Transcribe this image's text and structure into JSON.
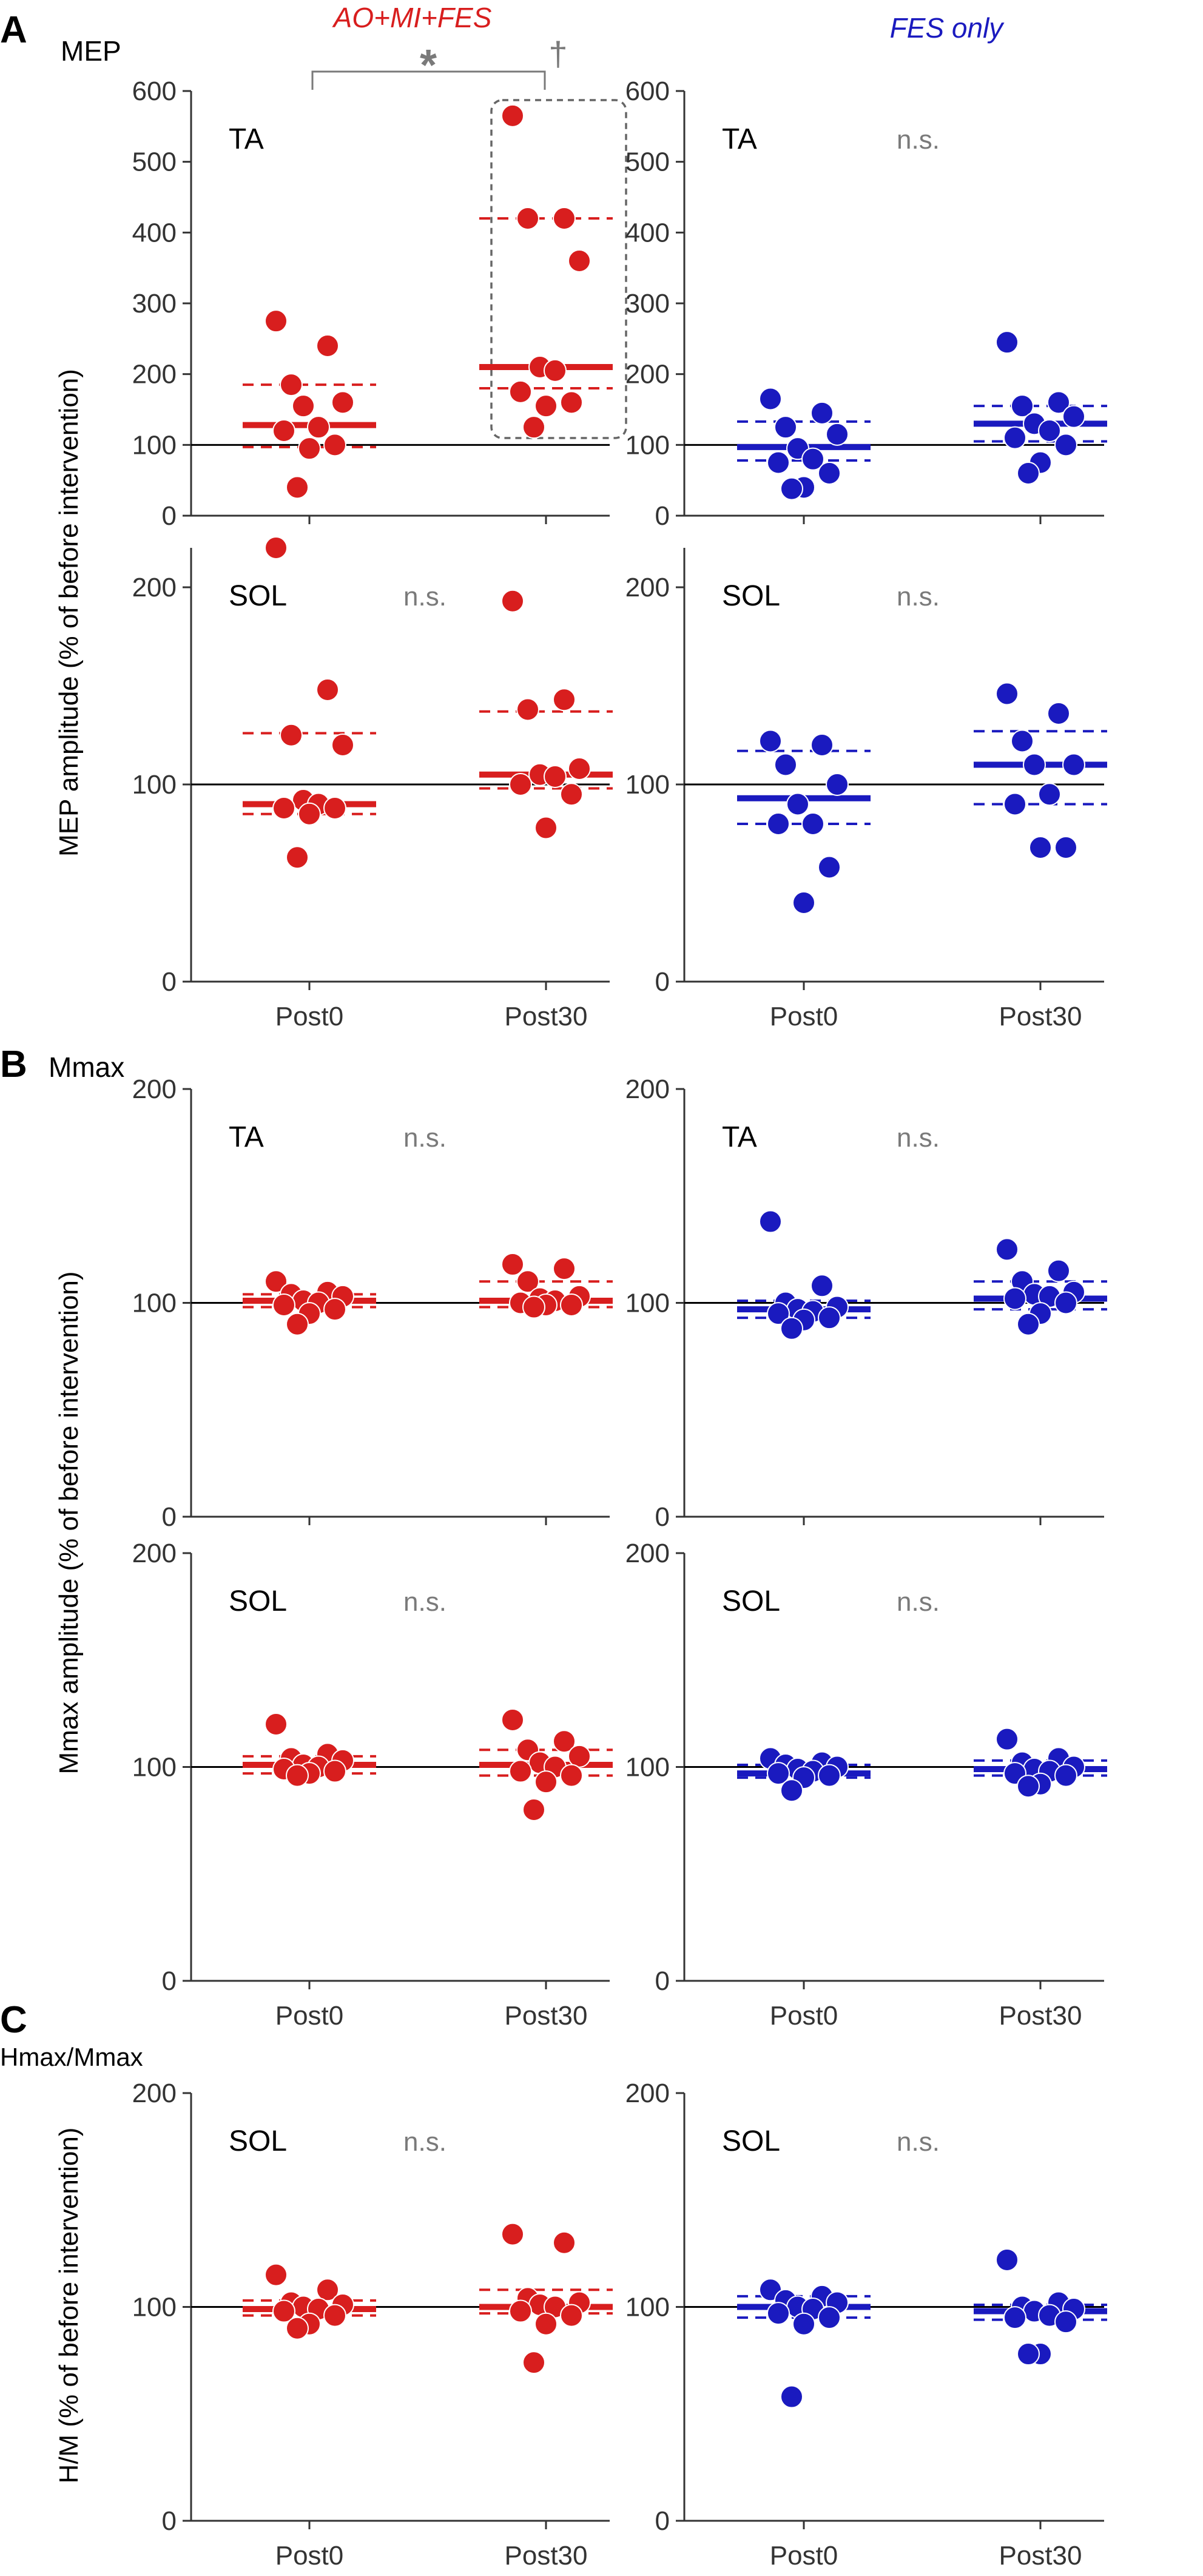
{
  "header": {
    "left_group": "AO+MI+FES",
    "right_group": "FES only"
  },
  "panels": [
    {
      "letter": "A",
      "measure": "MEP"
    },
    {
      "letter": "B",
      "measure": "Mmax"
    },
    {
      "letter": "C",
      "measure": "Hmax/Mmax"
    }
  ],
  "ylabels": {
    "mep": "MEP amplitude (% of before intervention)",
    "mmax": "Mmax amplitude (% of before intervention)",
    "hm": "H/M (% of before intervention)"
  },
  "annotations": {
    "sig_star": "*",
    "dagger": "†",
    "ns": "n.s."
  },
  "colors": {
    "ao": "#d81e1e",
    "fes": "#1a1abf",
    "axis": "#333333",
    "annot": "#7a7a7a"
  },
  "chart_data": [
    {
      "id": "mep-ta-ao",
      "type": "scatter",
      "title": "TA",
      "ylim": [
        0,
        600
      ],
      "yticks": [
        0,
        100,
        200,
        300,
        400,
        500,
        600
      ],
      "categories": [
        "Post0",
        "Post30"
      ],
      "show_xticklabels": false,
      "color_key": "ao",
      "note": "",
      "series": [
        {
          "name": "Post0",
          "values": [
            275,
            240,
            185,
            160,
            155,
            125,
            120,
            100,
            95,
            40
          ],
          "mean": 128,
          "sd_upper": 185,
          "sd_lower": 97
        },
        {
          "name": "Post30",
          "values": [
            565,
            420,
            420,
            360,
            210,
            205,
            175,
            160,
            155,
            125
          ],
          "mean": 210,
          "sd_upper": 420,
          "sd_lower": 180
        }
      ]
    },
    {
      "id": "mep-ta-fes",
      "type": "scatter",
      "title": "TA",
      "ylim": [
        0,
        600
      ],
      "yticks": [
        0,
        100,
        200,
        300,
        400,
        500,
        600
      ],
      "categories": [
        "Post0",
        "Post30"
      ],
      "show_xticklabels": false,
      "color_key": "fes",
      "note": "n.s.",
      "series": [
        {
          "name": "Post0",
          "values": [
            165,
            145,
            125,
            115,
            95,
            80,
            75,
            60,
            40,
            38
          ],
          "mean": 97,
          "sd_upper": 133,
          "sd_lower": 78
        },
        {
          "name": "Post30",
          "values": [
            245,
            160,
            155,
            140,
            130,
            120,
            110,
            100,
            75,
            60
          ],
          "mean": 130,
          "sd_upper": 155,
          "sd_lower": 105
        }
      ]
    },
    {
      "id": "mep-sol-ao",
      "type": "scatter",
      "title": "SOL",
      "ylim": [
        0,
        220
      ],
      "yticks": [
        0,
        100,
        200
      ],
      "categories": [
        "Post0",
        "Post30"
      ],
      "show_xticklabels": true,
      "color_key": "ao",
      "note": "n.s.",
      "series": [
        {
          "name": "Post0",
          "values": [
            220,
            148,
            125,
            120,
            92,
            90,
            88,
            88,
            85,
            63
          ],
          "mean": 90,
          "sd_upper": 126,
          "sd_lower": 85
        },
        {
          "name": "Post30",
          "values": [
            193,
            143,
            138,
            108,
            105,
            104,
            100,
            95,
            78
          ],
          "mean": 105,
          "sd_upper": 137,
          "sd_lower": 98
        }
      ]
    },
    {
      "id": "mep-sol-fes",
      "type": "scatter",
      "title": "SOL",
      "ylim": [
        0,
        220
      ],
      "yticks": [
        0,
        100,
        200
      ],
      "categories": [
        "Post0",
        "Post30"
      ],
      "show_xticklabels": true,
      "color_key": "fes",
      "note": "n.s.",
      "series": [
        {
          "name": "Post0",
          "values": [
            122,
            120,
            110,
            100,
            90,
            80,
            80,
            58,
            40
          ],
          "mean": 93,
          "sd_upper": 117,
          "sd_lower": 80
        },
        {
          "name": "Post30",
          "values": [
            146,
            136,
            122,
            110,
            110,
            95,
            90,
            68,
            68
          ],
          "mean": 110,
          "sd_upper": 127,
          "sd_lower": 90
        }
      ]
    },
    {
      "id": "mmax-ta-ao",
      "type": "scatter",
      "title": "TA",
      "ylim": [
        0,
        200
      ],
      "yticks": [
        0,
        100,
        200
      ],
      "categories": [
        "Post0",
        "Post30"
      ],
      "show_xticklabels": false,
      "color_key": "ao",
      "note": "n.s.",
      "series": [
        {
          "name": "Post0",
          "values": [
            110,
            105,
            104,
            103,
            101,
            100,
            99,
            97,
            95,
            90
          ],
          "mean": 101,
          "sd_upper": 104,
          "sd_lower": 98
        },
        {
          "name": "Post30",
          "values": [
            118,
            116,
            110,
            103,
            102,
            101,
            100,
            99,
            99,
            98
          ],
          "mean": 101,
          "sd_upper": 110,
          "sd_lower": 98
        }
      ]
    },
    {
      "id": "mmax-ta-fes",
      "type": "scatter",
      "title": "TA",
      "ylim": [
        0,
        200
      ],
      "yticks": [
        0,
        100,
        200
      ],
      "categories": [
        "Post0",
        "Post30"
      ],
      "show_xticklabels": false,
      "color_key": "fes",
      "note": "n.s.",
      "series": [
        {
          "name": "Post0",
          "values": [
            138,
            108,
            100,
            98,
            97,
            96,
            95,
            93,
            92,
            88
          ],
          "mean": 97,
          "sd_upper": 101,
          "sd_lower": 93
        },
        {
          "name": "Post30",
          "values": [
            125,
            115,
            110,
            105,
            104,
            103,
            102,
            100,
            95,
            90
          ],
          "mean": 102,
          "sd_upper": 110,
          "sd_lower": 97
        }
      ]
    },
    {
      "id": "mmax-sol-ao",
      "type": "scatter",
      "title": "SOL",
      "ylim": [
        0,
        200
      ],
      "yticks": [
        0,
        100,
        200
      ],
      "categories": [
        "Post0",
        "Post30"
      ],
      "show_xticklabels": true,
      "color_key": "ao",
      "note": "n.s.",
      "series": [
        {
          "name": "Post0",
          "values": [
            120,
            106,
            104,
            103,
            101,
            100,
            99,
            98,
            97,
            96
          ],
          "mean": 101,
          "sd_upper": 105,
          "sd_lower": 97
        },
        {
          "name": "Post30",
          "values": [
            122,
            112,
            108,
            105,
            102,
            100,
            98,
            96,
            93,
            80
          ],
          "mean": 101,
          "sd_upper": 108,
          "sd_lower": 96
        }
      ]
    },
    {
      "id": "mmax-sol-fes",
      "type": "scatter",
      "title": "SOL",
      "ylim": [
        0,
        200
      ],
      "yticks": [
        0,
        100,
        200
      ],
      "categories": [
        "Post0",
        "Post30"
      ],
      "show_xticklabels": true,
      "color_key": "fes",
      "note": "n.s.",
      "series": [
        {
          "name": "Post0",
          "values": [
            104,
            102,
            101,
            100,
            99,
            98,
            97,
            96,
            95,
            89
          ],
          "mean": 97,
          "sd_upper": 101,
          "sd_lower": 95
        },
        {
          "name": "Post30",
          "values": [
            113,
            104,
            102,
            100,
            99,
            98,
            97,
            96,
            92,
            91
          ],
          "mean": 99,
          "sd_upper": 103,
          "sd_lower": 96
        }
      ]
    },
    {
      "id": "hm-sol-ao",
      "type": "scatter",
      "title": "SOL",
      "ylim": [
        0,
        200
      ],
      "yticks": [
        0,
        100,
        200
      ],
      "categories": [
        "Post0",
        "Post30"
      ],
      "show_xticklabels": true,
      "color_key": "ao",
      "note": "n.s.",
      "series": [
        {
          "name": "Post0",
          "values": [
            115,
            108,
            102,
            101,
            100,
            99,
            98,
            96,
            92,
            90
          ],
          "mean": 99,
          "sd_upper": 103,
          "sd_lower": 96
        },
        {
          "name": "Post30",
          "values": [
            134,
            130,
            104,
            102,
            101,
            100,
            98,
            96,
            92,
            74
          ],
          "mean": 100,
          "sd_upper": 108,
          "sd_lower": 97
        }
      ]
    },
    {
      "id": "hm-sol-fes",
      "type": "scatter",
      "title": "SOL",
      "ylim": [
        0,
        200
      ],
      "yticks": [
        0,
        100,
        200
      ],
      "categories": [
        "Post0",
        "Post30"
      ],
      "show_xticklabels": true,
      "color_key": "fes",
      "note": "n.s.",
      "series": [
        {
          "name": "Post0",
          "values": [
            108,
            105,
            103,
            102,
            100,
            99,
            97,
            95,
            92,
            58
          ],
          "mean": 100,
          "sd_upper": 105,
          "sd_lower": 95
        },
        {
          "name": "Post30",
          "values": [
            122,
            102,
            100,
            99,
            98,
            96,
            95,
            93,
            78,
            78
          ],
          "mean": 98,
          "sd_upper": 101,
          "sd_lower": 94
        }
      ]
    }
  ]
}
